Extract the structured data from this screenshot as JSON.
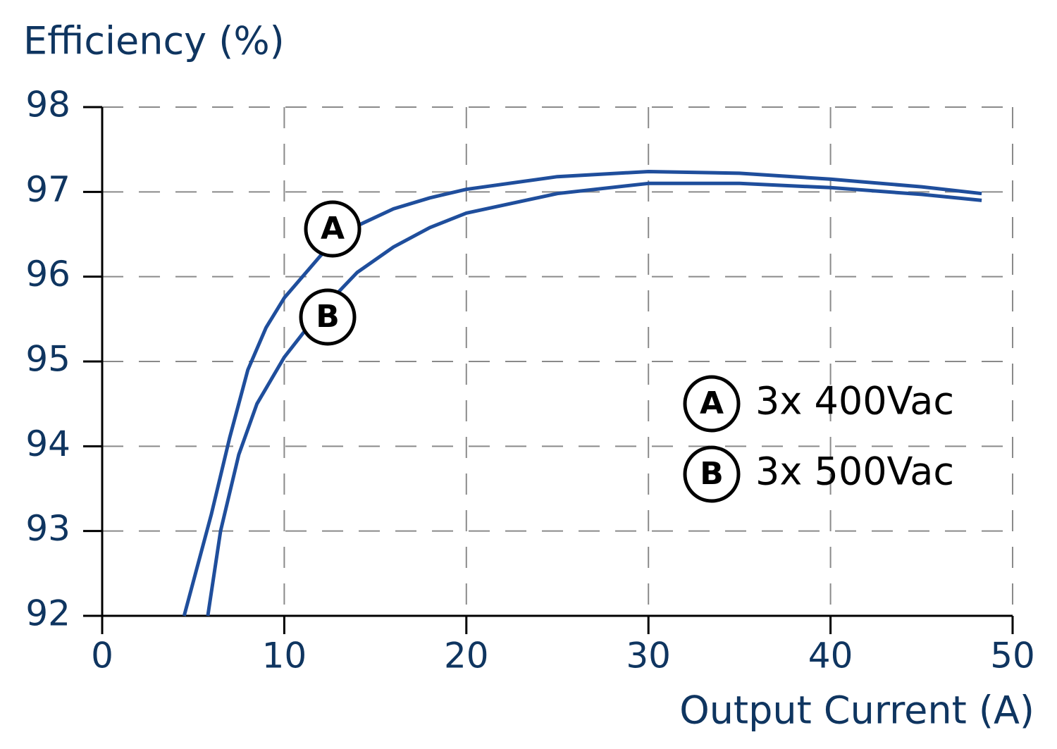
{
  "chart_data": {
    "type": "line",
    "y_label": "Efficiency (%)",
    "x_label": "Output Current (A)",
    "xlim": [
      0,
      50
    ],
    "xticks": [
      0,
      10,
      20,
      30,
      40,
      50
    ],
    "ylim": [
      92,
      98
    ],
    "yticks": [
      92,
      93,
      94,
      95,
      96,
      97,
      98
    ],
    "grid": true,
    "series": [
      {
        "name": "3x 400Vac",
        "marker": "A",
        "color": "#1f4e9c",
        "x": [
          4.5,
          6,
          7,
          8,
          9,
          10,
          12,
          14,
          16,
          18,
          20,
          25,
          30,
          35,
          40,
          45,
          48.3
        ],
        "values": [
          92,
          93.2,
          94.1,
          94.9,
          95.4,
          95.75,
          96.25,
          96.6,
          96.8,
          96.93,
          97.03,
          97.18,
          97.24,
          97.22,
          97.15,
          97.06,
          96.98
        ]
      },
      {
        "name": "3x 500Vac",
        "marker": "B",
        "color": "#1f4e9c",
        "x": [
          5.8,
          6.5,
          7.5,
          8.5,
          10,
          12,
          14,
          16,
          18,
          20,
          25,
          30,
          35,
          40,
          45,
          48.3
        ],
        "values": [
          92,
          93.0,
          93.9,
          94.5,
          95.05,
          95.6,
          96.05,
          96.35,
          96.58,
          96.75,
          96.98,
          97.1,
          97.1,
          97.05,
          96.97,
          96.9
        ]
      }
    ]
  }
}
